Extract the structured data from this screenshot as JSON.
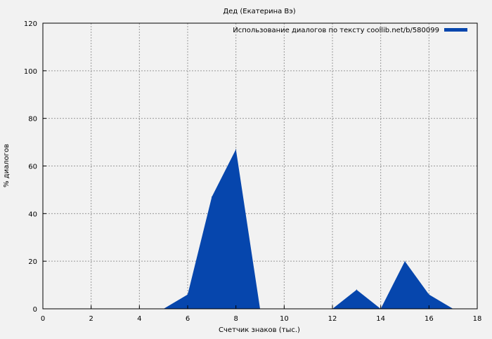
{
  "chart_data": {
    "type": "area",
    "title": "Дед (Екатерина Вэ)",
    "xlabel": "Счетчик знаков (тыс.)",
    "ylabel": "% диалогов",
    "xlim": [
      0,
      18
    ],
    "ylim": [
      0,
      120
    ],
    "xticks": [
      0,
      2,
      4,
      6,
      8,
      10,
      12,
      14,
      16,
      18
    ],
    "yticks": [
      0,
      20,
      40,
      60,
      80,
      100,
      120
    ],
    "grid": true,
    "legend_position": "top-right",
    "series": [
      {
        "name": "Использование диалогов по тексту coollib.net/b/580099",
        "color": "#0646ad",
        "x": [
          0,
          1,
          2,
          3,
          4,
          5,
          6,
          7,
          8,
          9,
          10,
          11,
          12,
          13,
          14,
          15,
          16,
          17,
          18
        ],
        "y": [
          0,
          0,
          0,
          0,
          0,
          0,
          6,
          47,
          67,
          0,
          0,
          0,
          0,
          8,
          0,
          20,
          6,
          0,
          0
        ]
      }
    ]
  }
}
